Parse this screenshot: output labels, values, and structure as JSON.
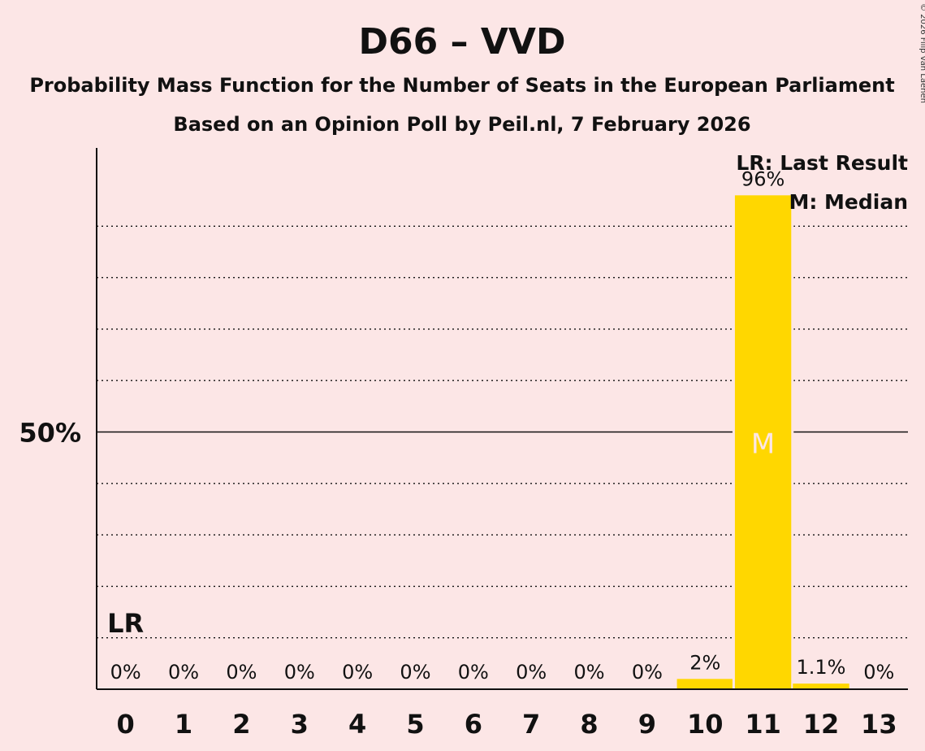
{
  "chart_data": {
    "type": "bar",
    "title": "D66 – VVD",
    "subtitle_1": "Probability Mass Function for the Number of Seats in the European Parliament",
    "subtitle_2": "Based on an Opinion Poll by Peil.nl, 7 February 2026",
    "xlabel": "",
    "ylabel": "",
    "ylim": [
      0,
      100
    ],
    "categories": [
      "0",
      "1",
      "2",
      "3",
      "4",
      "5",
      "6",
      "7",
      "8",
      "9",
      "10",
      "11",
      "12",
      "13"
    ],
    "values": [
      0,
      0,
      0,
      0,
      0,
      0,
      0,
      0,
      0,
      0,
      2,
      96,
      1.1,
      0
    ],
    "value_labels": [
      "0%",
      "0%",
      "0%",
      "0%",
      "0%",
      "0%",
      "0%",
      "0%",
      "0%",
      "0%",
      "2%",
      "96%",
      "1.1%",
      "0%"
    ],
    "y_tick_label": "50%",
    "y_tick_value": 50,
    "gridlines": [
      10,
      20,
      30,
      40,
      60,
      70,
      80,
      90
    ],
    "last_result_index": 0,
    "last_result_marker": "LR",
    "median_index": 11,
    "median_marker": "M",
    "legend": {
      "position": "top-right",
      "items": [
        "LR: Last Result",
        "M: Median"
      ]
    },
    "bar_color": "#FFD700",
    "copyright": "© 2026 Filip van Laenen"
  }
}
